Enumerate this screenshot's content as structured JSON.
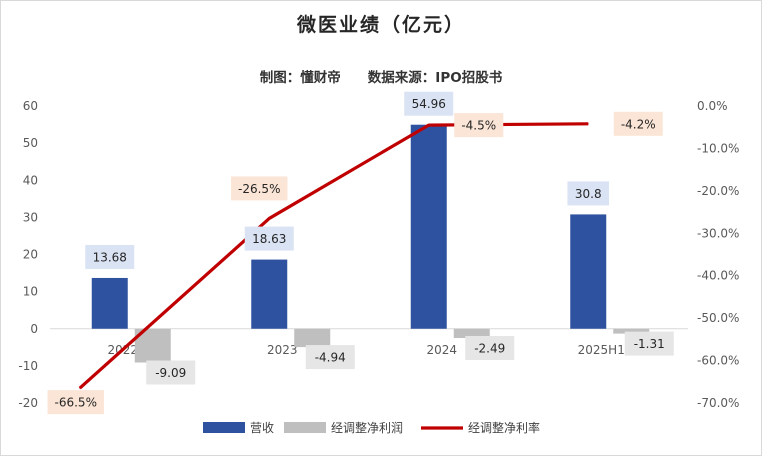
{
  "chart_data": {
    "type": "bar",
    "title": "微医业绩（亿元）",
    "subtitle": "制图：懂财帝　　数据来源：IPO招股书",
    "categories": [
      "2022",
      "2023",
      "2024",
      "2025H1"
    ],
    "series": [
      {
        "name": "营收",
        "type": "bar",
        "axis": "left",
        "values": [
          13.68,
          18.63,
          54.96,
          30.8
        ],
        "labels": [
          "13.68",
          "18.63",
          "54.96",
          "30.8"
        ],
        "color": "#2f52a0",
        "label_bg": "#dae3f3"
      },
      {
        "name": "经调整净利润",
        "type": "bar",
        "axis": "left",
        "values": [
          -9.09,
          -4.94,
          -2.49,
          -1.31
        ],
        "labels": [
          "-9.09",
          "-4.94",
          "-2.49",
          "-1.31"
        ],
        "color": "#bfbfbf",
        "label_bg": "#e7e6e6"
      },
      {
        "name": "经调整净利率",
        "type": "line",
        "axis": "right",
        "values": [
          -66.5,
          -26.5,
          -4.5,
          -4.2
        ],
        "labels": [
          "-66.5%",
          "-26.5%",
          "-4.5%",
          "-4.2%"
        ],
        "color": "#c00000",
        "label_bg": "#fbe5d6"
      }
    ],
    "y_left": {
      "min": -20,
      "max": 60,
      "ticks": [
        "-20",
        "-10",
        "0",
        "10",
        "20",
        "30",
        "40",
        "50",
        "60"
      ]
    },
    "y_right": {
      "min": -70,
      "max": 0,
      "ticks": [
        "-70.0%",
        "-60.0%",
        "-50.0%",
        "-40.0%",
        "-30.0%",
        "-20.0%",
        "-10.0%",
        "0.0%"
      ]
    },
    "legend_position": "bottom"
  }
}
